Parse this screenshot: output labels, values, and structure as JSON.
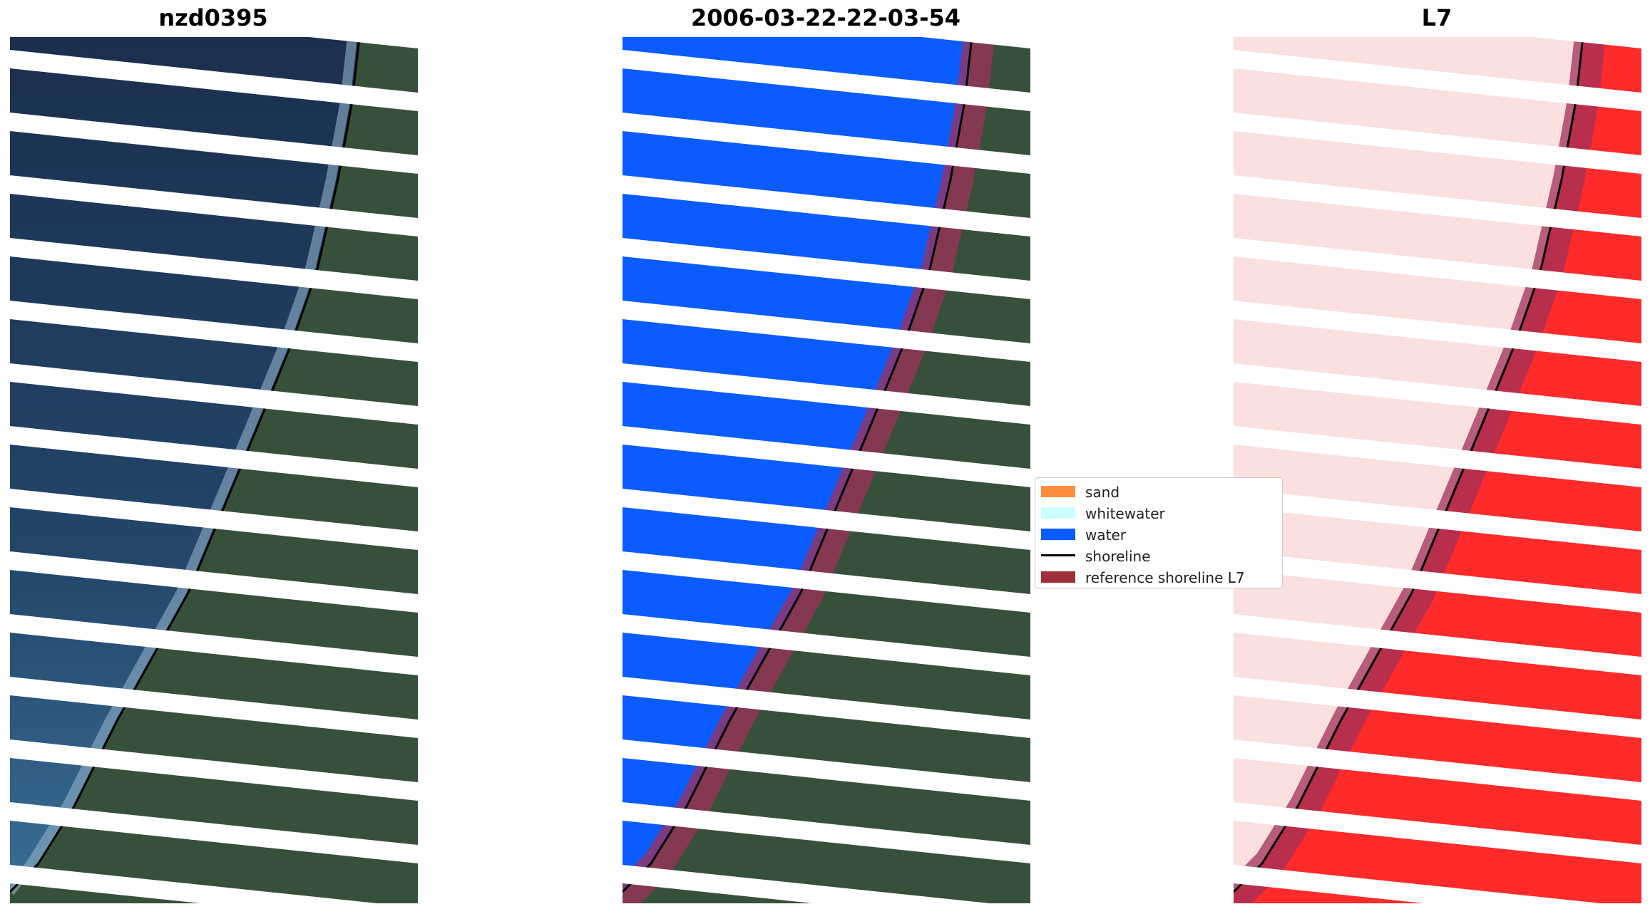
{
  "titles": {
    "panel1": "nzd0395",
    "panel2": "2006-03-22-22-03-54",
    "panel3": "L7"
  },
  "legend": {
    "items": [
      {
        "label": "sand",
        "color": "#ff8c3c",
        "kind": "patch"
      },
      {
        "label": "whitewater",
        "color": "#ccffff",
        "kind": "patch"
      },
      {
        "label": "water",
        "color": "#0a5cff",
        "kind": "patch"
      },
      {
        "label": "shoreline",
        "color": "#000000",
        "kind": "line"
      },
      {
        "label": "reference shoreline L7",
        "color": "#a0303a",
        "kind": "patch"
      }
    ]
  },
  "colors": {
    "sea": "#1e3a5c",
    "land": "#3c5438",
    "water_class": "#0a5cff",
    "swir_land": "#ff2a2a",
    "swir_sea": "#fbe0e0",
    "reference_buffer": "#a0305a",
    "shoreline": "#000000",
    "gap": "#ffffff"
  },
  "icons": {
    "panel_image": "satellite-image",
    "legend_line": "line-glyph",
    "legend_patch": "color-patch"
  }
}
